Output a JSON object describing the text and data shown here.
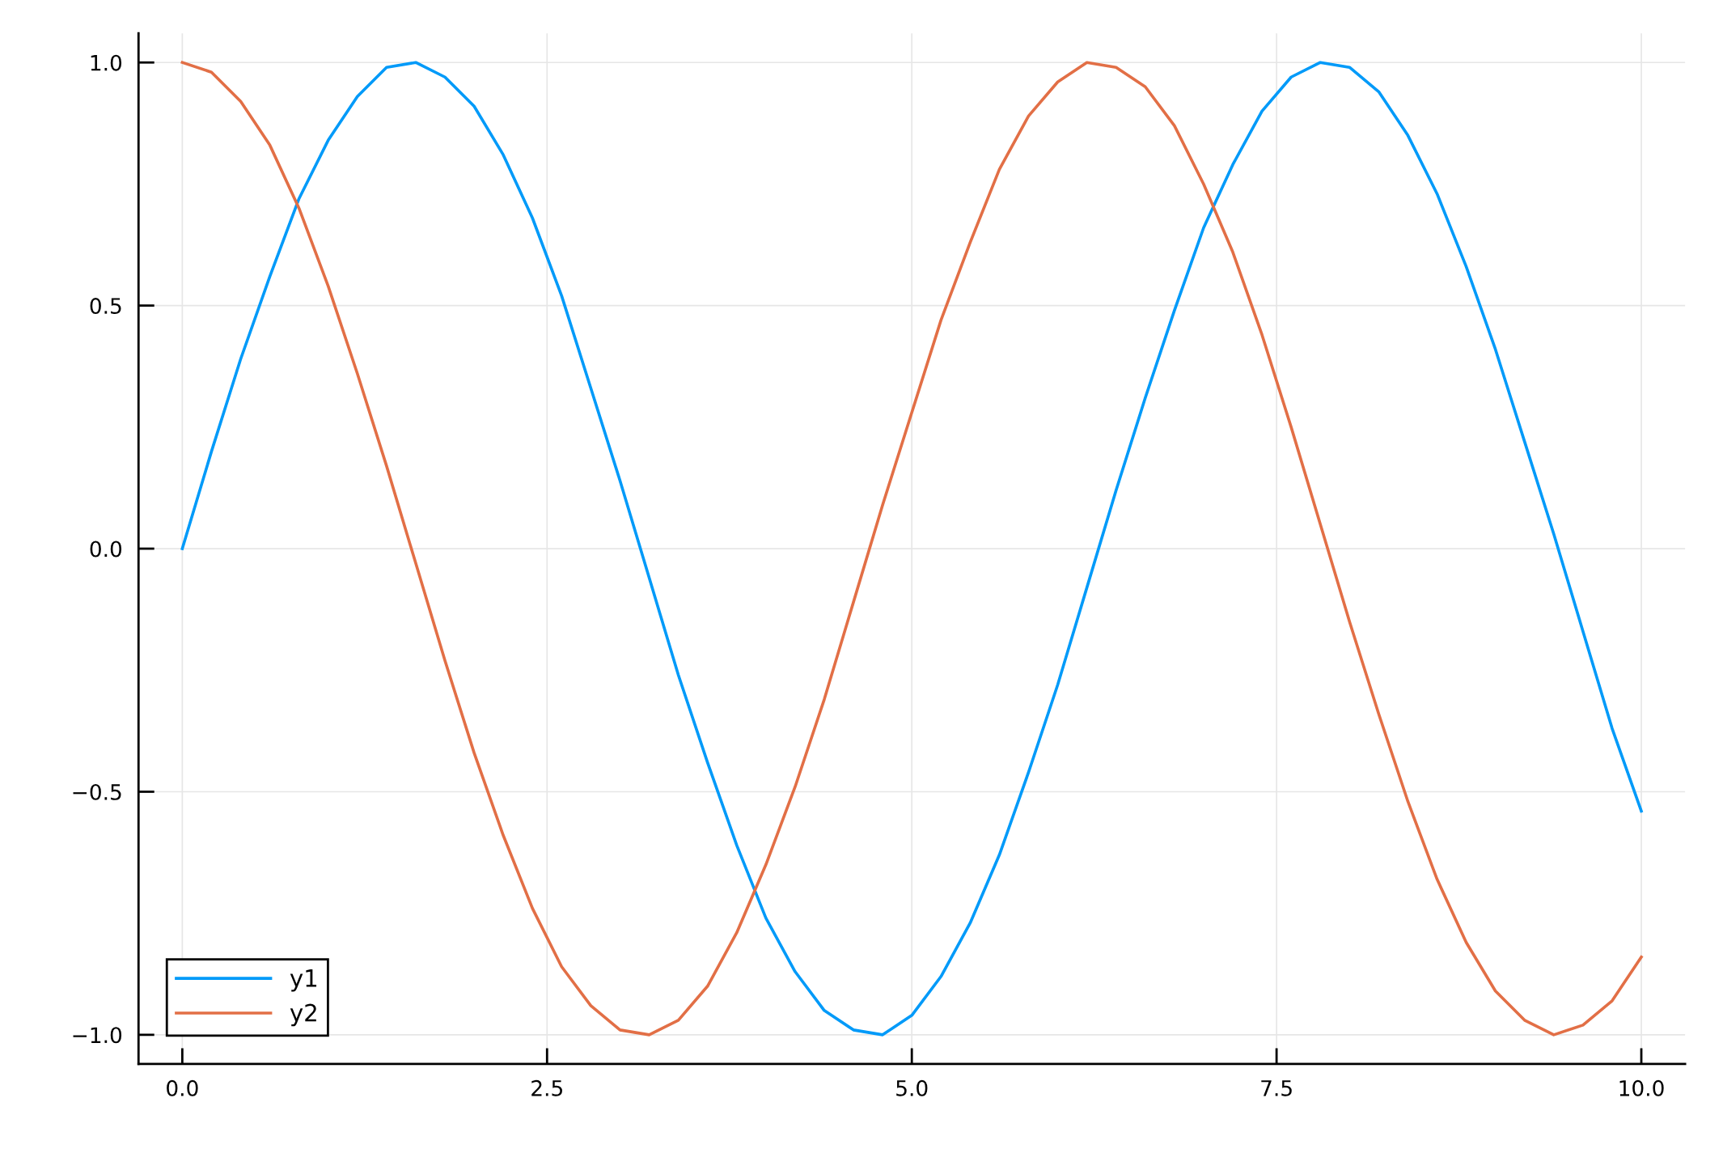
{
  "chart_data": {
    "type": "line",
    "x": [
      0,
      0.2,
      0.4,
      0.6,
      0.8,
      1.0,
      1.2,
      1.4,
      1.6,
      1.8,
      2.0,
      2.2,
      2.4,
      2.6,
      2.8,
      3.0,
      3.2,
      3.4,
      3.6,
      3.8,
      4.0,
      4.2,
      4.4,
      4.6,
      4.8,
      5.0,
      5.2,
      5.4,
      5.6,
      5.8,
      6.0,
      6.2,
      6.4,
      6.6,
      6.8,
      7.0,
      7.2,
      7.4,
      7.6,
      7.8,
      8.0,
      8.2,
      8.4,
      8.6,
      8.8,
      9.0,
      9.2,
      9.4,
      9.6,
      9.8,
      10.0
    ],
    "series": [
      {
        "name": "y1",
        "color": "#009af9",
        "values": [
          0.0,
          0.2,
          0.39,
          0.56,
          0.72,
          0.84,
          0.93,
          0.99,
          1.0,
          0.97,
          0.91,
          0.81,
          0.68,
          0.52,
          0.33,
          0.14,
          -0.06,
          -0.26,
          -0.44,
          -0.61,
          -0.76,
          -0.87,
          -0.95,
          -0.99,
          -1.0,
          -0.96,
          -0.88,
          -0.77,
          -0.63,
          -0.46,
          -0.28,
          -0.08,
          0.12,
          0.31,
          0.49,
          0.66,
          0.79,
          0.9,
          0.97,
          1.0,
          0.99,
          0.94,
          0.85,
          0.73,
          0.58,
          0.41,
          0.22,
          0.03,
          -0.17,
          -0.37,
          -0.54
        ]
      },
      {
        "name": "y2",
        "color": "#e26f46",
        "values": [
          1.0,
          0.98,
          0.92,
          0.83,
          0.7,
          0.54,
          0.36,
          0.17,
          -0.03,
          -0.23,
          -0.42,
          -0.59,
          -0.74,
          -0.86,
          -0.94,
          -0.99,
          -1.0,
          -0.97,
          -0.9,
          -0.79,
          -0.65,
          -0.49,
          -0.31,
          -0.11,
          0.09,
          0.28,
          0.47,
          0.63,
          0.78,
          0.89,
          0.96,
          1.0,
          0.99,
          0.95,
          0.87,
          0.75,
          0.61,
          0.44,
          0.25,
          0.05,
          -0.15,
          -0.34,
          -0.52,
          -0.68,
          -0.81,
          -0.91,
          -0.97,
          -1.0,
          -0.98,
          -0.93,
          -0.84
        ]
      }
    ],
    "xlim": [
      -0.3,
      10.3
    ],
    "ylim": [
      -1.06,
      1.06
    ],
    "xticks": [
      {
        "value": 0,
        "label": "0.0"
      },
      {
        "value": 2.5,
        "label": "2.5"
      },
      {
        "value": 5,
        "label": "5.0"
      },
      {
        "value": 7.5,
        "label": "7.5"
      },
      {
        "value": 10,
        "label": "10.0"
      }
    ],
    "yticks": [
      {
        "value": -1,
        "label": "−1.0"
      },
      {
        "value": -0.5,
        "label": "−0.5"
      },
      {
        "value": 0,
        "label": "0.0"
      },
      {
        "value": 0.5,
        "label": "0.5"
      },
      {
        "value": 1,
        "label": "1.0"
      }
    ],
    "grid": true,
    "legend": "bottom left",
    "line_style": "solid",
    "marker": "none"
  }
}
